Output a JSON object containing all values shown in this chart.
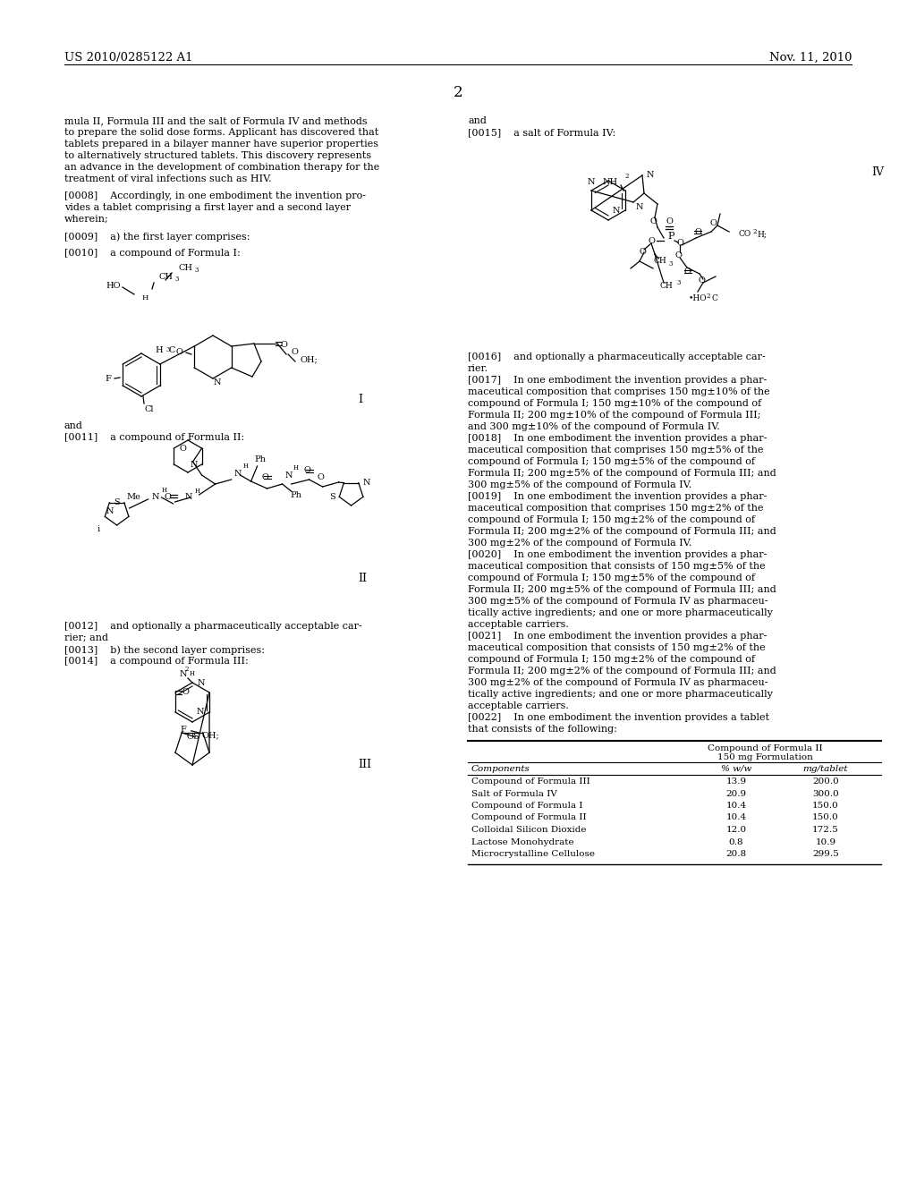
{
  "page_header_left": "US 2010/0285122 A1",
  "page_header_right": "Nov. 11, 2010",
  "page_number": "2",
  "background_color": "#ffffff",
  "text_color": "#000000",
  "left_column_text": [
    "mula II, Formula III and the salt of Formula IV and methods",
    "to prepare the solid dose forms. Applicant has discovered that",
    "tablets prepared in a bilayer manner have superior properties",
    "to alternatively structured tablets. This discovery represents",
    "an advance in the development of combination therapy for the",
    "treatment of viral infections such as HIV.",
    "",
    "[0008]    Accordingly, in one embodiment the invention pro-",
    "vides a tablet comprising a first layer and a second layer",
    "wherein;",
    "",
    "[0009]    a) the first layer comprises:",
    "",
    "[0010]    a compound of Formula I:"
  ],
  "left_col_below_formula1": [
    "and",
    "[0011]    a compound of Formula II:"
  ],
  "left_col_below_formula2": [
    "[0012]    and optionally a pharmaceutically acceptable car-",
    "rier; and",
    "[0013]    b) the second layer comprises:",
    "[0014]    a compound of Formula III:"
  ],
  "right_col_top_text": [
    "and",
    "[0015]    a salt of Formula IV:"
  ],
  "right_col_below_formula4": [
    "[0016]    and optionally a pharmaceutically acceptable car-",
    "rier.",
    "[0017]    In one embodiment the invention provides a phar-",
    "maceutical composition that comprises 150 mg±10% of the",
    "compound of Formula I; 150 mg±10% of the compound of",
    "Formula II; 200 mg±10% of the compound of Formula III;",
    "and 300 mg±10% of the compound of Formula IV.",
    "[0018]    In one embodiment the invention provides a phar-",
    "maceutical composition that comprises 150 mg±5% of the",
    "compound of Formula I; 150 mg±5% of the compound of",
    "Formula II; 200 mg±5% of the compound of Formula III; and",
    "300 mg±5% of the compound of Formula IV.",
    "[0019]    In one embodiment the invention provides a phar-",
    "maceutical composition that comprises 150 mg±2% of the",
    "compound of Formula I; 150 mg±2% of the compound of",
    "Formula II; 200 mg±2% of the compound of Formula III; and",
    "300 mg±2% of the compound of Formula IV.",
    "[0020]    In one embodiment the invention provides a phar-",
    "maceutical composition that consists of 150 mg±5% of the",
    "compound of Formula I; 150 mg±5% of the compound of",
    "Formula II; 200 mg±5% of the compound of Formula III; and",
    "300 mg±5% of the compound of Formula IV as pharmaceu-",
    "tically active ingredients; and one or more pharmaceutically",
    "acceptable carriers.",
    "[0021]    In one embodiment the invention provides a phar-",
    "maceutical composition that consists of 150 mg±2% of the",
    "compound of Formula I; 150 mg±2% of the compound of",
    "Formula II; 200 mg±2% of the compound of Formula III; and",
    "300 mg±2% of the compound of Formula IV as pharmaceu-",
    "tically active ingredients; and one or more pharmaceutically",
    "acceptable carriers.",
    "[0022]    In one embodiment the invention provides a tablet",
    "that consists of the following:"
  ],
  "table_header_line1": "Compound of Formula II",
  "table_header_line2": "150 mg Formulation",
  "table_col1": "Components",
  "table_col2": "% w/w",
  "table_col3": "mg/tablet",
  "table_rows": [
    [
      "Compound of Formula III",
      "13.9",
      "200.0"
    ],
    [
      "Salt of Formula IV",
      "20.9",
      "300.0"
    ],
    [
      "Compound of Formula I",
      "10.4",
      "150.0"
    ],
    [
      "Compound of Formula II",
      "10.4",
      "150.0"
    ],
    [
      "Colloidal Silicon Dioxide",
      "12.0",
      "172.5"
    ],
    [
      "Lactose Monohydrate",
      "0.8",
      "10.9"
    ],
    [
      "Microcrystalline Cellulose",
      "20.8",
      "299.5"
    ]
  ],
  "font_size_header": 9.5,
  "font_size_body": 8.0,
  "font_size_page_num": 12,
  "font_size_table": 7.5
}
